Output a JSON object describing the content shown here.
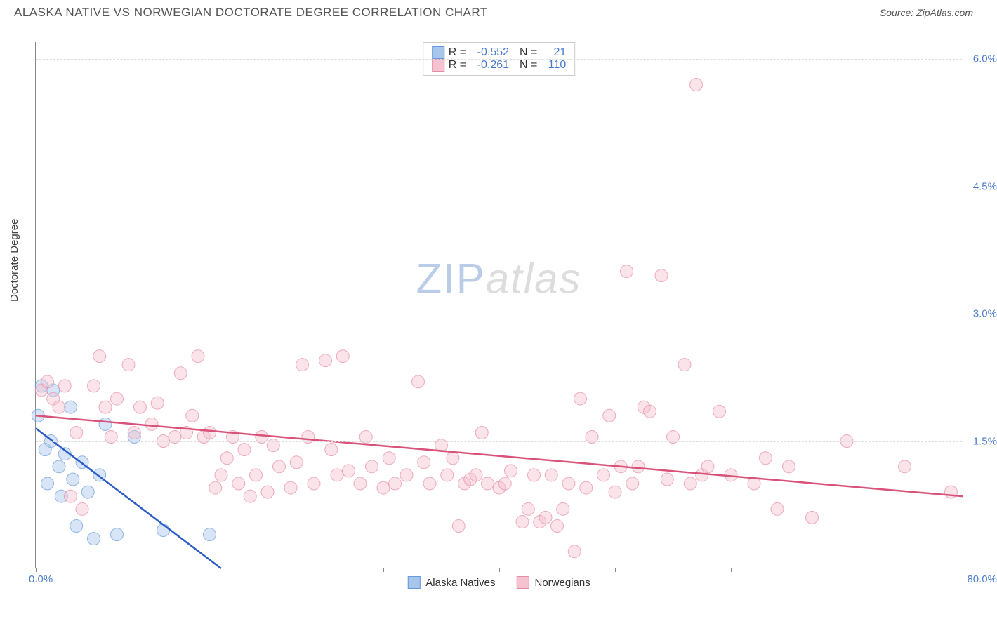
{
  "header": {
    "title": "ALASKA NATIVE VS NORWEGIAN DOCTORATE DEGREE CORRELATION CHART",
    "source": "Source: ZipAtlas.com"
  },
  "ylabel": "Doctorate Degree",
  "watermark": {
    "part1": "ZIP",
    "part2": "atlas"
  },
  "chart": {
    "type": "scatter",
    "xlim": [
      0,
      80
    ],
    "ylim": [
      0,
      6.2
    ],
    "yticks": [
      1.5,
      3.0,
      4.5,
      6.0
    ],
    "ytick_labels": [
      "1.5%",
      "3.0%",
      "4.5%",
      "6.0%"
    ],
    "xticks": [
      0,
      10,
      20,
      30,
      40,
      50,
      60,
      70,
      80
    ],
    "xaxis_min_label": "0.0%",
    "xaxis_max_label": "80.0%",
    "grid_color": "#dddddd",
    "background_color": "#ffffff",
    "axis_color": "#888888",
    "tick_label_color": "#4a7bd0",
    "label_fontsize": 15,
    "title_fontsize": 17,
    "marker_radius": 9,
    "marker_opacity": 0.45,
    "line_width": 2.5,
    "series": [
      {
        "name": "Alaska Natives",
        "color_fill": "#a8c5ec",
        "color_stroke": "#6699dd",
        "line_color": "#2a5bc8",
        "R": "-0.552",
        "N": "21",
        "trend": {
          "x1": 0,
          "y1": 1.65,
          "x2": 16,
          "y2": 0
        },
        "points": [
          [
            0.2,
            1.8
          ],
          [
            0.5,
            2.15
          ],
          [
            0.8,
            1.4
          ],
          [
            1.0,
            1.0
          ],
          [
            1.3,
            1.5
          ],
          [
            1.5,
            2.1
          ],
          [
            2.0,
            1.2
          ],
          [
            2.2,
            0.85
          ],
          [
            2.5,
            1.35
          ],
          [
            3.0,
            1.9
          ],
          [
            3.2,
            1.05
          ],
          [
            3.5,
            0.5
          ],
          [
            4.0,
            1.25
          ],
          [
            4.5,
            0.9
          ],
          [
            5.0,
            0.35
          ],
          [
            5.5,
            1.1
          ],
          [
            6.0,
            1.7
          ],
          [
            7.0,
            0.4
          ],
          [
            8.5,
            1.55
          ],
          [
            11.0,
            0.45
          ],
          [
            15.0,
            0.4
          ]
        ]
      },
      {
        "name": "Norwegians",
        "color_fill": "#f5c2cf",
        "color_stroke": "#e88aa5",
        "line_color": "#d8527a",
        "R": "-0.261",
        "N": "110",
        "trend": {
          "x1": 0,
          "y1": 1.8,
          "x2": 80,
          "y2": 0.85
        },
        "points": [
          [
            0.5,
            2.1
          ],
          [
            1,
            2.2
          ],
          [
            1.5,
            2.0
          ],
          [
            2,
            1.9
          ],
          [
            2.5,
            2.15
          ],
          [
            3,
            0.85
          ],
          [
            3.5,
            1.6
          ],
          [
            4,
            0.7
          ],
          [
            5,
            2.15
          ],
          [
            5.5,
            2.5
          ],
          [
            6,
            1.9
          ],
          [
            6.5,
            1.55
          ],
          [
            7,
            2.0
          ],
          [
            8,
            2.4
          ],
          [
            8.5,
            1.6
          ],
          [
            9,
            1.9
          ],
          [
            10,
            1.7
          ],
          [
            10.5,
            1.95
          ],
          [
            11,
            1.5
          ],
          [
            12,
            1.55
          ],
          [
            12.5,
            2.3
          ],
          [
            13,
            1.6
          ],
          [
            13.5,
            1.8
          ],
          [
            14,
            2.5
          ],
          [
            14.5,
            1.55
          ],
          [
            15,
            1.6
          ],
          [
            15.5,
            0.95
          ],
          [
            16,
            1.1
          ],
          [
            16.5,
            1.3
          ],
          [
            17,
            1.55
          ],
          [
            17.5,
            1.0
          ],
          [
            18,
            1.4
          ],
          [
            18.5,
            0.85
          ],
          [
            19,
            1.1
          ],
          [
            19.5,
            1.55
          ],
          [
            20,
            0.9
          ],
          [
            20.5,
            1.45
          ],
          [
            21,
            1.2
          ],
          [
            22,
            0.95
          ],
          [
            22.5,
            1.25
          ],
          [
            23,
            2.4
          ],
          [
            23.5,
            1.55
          ],
          [
            24,
            1.0
          ],
          [
            25,
            2.45
          ],
          [
            25.5,
            1.4
          ],
          [
            26,
            1.1
          ],
          [
            26.5,
            2.5
          ],
          [
            27,
            1.15
          ],
          [
            28,
            1.0
          ],
          [
            28.5,
            1.55
          ],
          [
            29,
            1.2
          ],
          [
            30,
            0.95
          ],
          [
            30.5,
            1.3
          ],
          [
            31,
            1.0
          ],
          [
            32,
            1.1
          ],
          [
            33,
            2.2
          ],
          [
            33.5,
            1.25
          ],
          [
            34,
            1.0
          ],
          [
            35,
            1.45
          ],
          [
            35.5,
            1.1
          ],
          [
            36,
            1.3
          ],
          [
            36.5,
            0.5
          ],
          [
            37,
            1.0
          ],
          [
            37.5,
            1.05
          ],
          [
            38,
            1.1
          ],
          [
            38.5,
            1.6
          ],
          [
            39,
            1.0
          ],
          [
            40,
            0.95
          ],
          [
            40.5,
            1.0
          ],
          [
            41,
            1.15
          ],
          [
            42,
            0.55
          ],
          [
            42.5,
            0.7
          ],
          [
            43,
            1.1
          ],
          [
            43.5,
            0.55
          ],
          [
            44,
            0.6
          ],
          [
            44.5,
            1.1
          ],
          [
            45,
            0.5
          ],
          [
            45.5,
            0.7
          ],
          [
            46,
            1.0
          ],
          [
            46.5,
            0.2
          ],
          [
            47,
            2.0
          ],
          [
            47.5,
            0.95
          ],
          [
            48,
            1.55
          ],
          [
            49,
            1.1
          ],
          [
            49.5,
            1.8
          ],
          [
            50,
            0.9
          ],
          [
            50.5,
            1.2
          ],
          [
            51,
            3.5
          ],
          [
            51.5,
            1.0
          ],
          [
            52,
            1.2
          ],
          [
            52.5,
            1.9
          ],
          [
            53,
            1.85
          ],
          [
            54,
            3.45
          ],
          [
            54.5,
            1.05
          ],
          [
            55,
            1.55
          ],
          [
            56,
            2.4
          ],
          [
            56.5,
            1.0
          ],
          [
            57,
            5.7
          ],
          [
            57.5,
            1.1
          ],
          [
            58,
            1.2
          ],
          [
            59,
            1.85
          ],
          [
            60,
            1.1
          ],
          [
            62,
            1.0
          ],
          [
            63,
            1.3
          ],
          [
            64,
            0.7
          ],
          [
            65,
            1.2
          ],
          [
            67,
            0.6
          ],
          [
            70,
            1.5
          ],
          [
            75,
            1.2
          ],
          [
            79,
            0.9
          ]
        ]
      }
    ]
  },
  "legend_bottom": [
    {
      "label": "Alaska Natives",
      "fill": "#a8c5ec",
      "stroke": "#6699dd"
    },
    {
      "label": "Norwegians",
      "fill": "#f5c2cf",
      "stroke": "#e88aa5"
    }
  ]
}
